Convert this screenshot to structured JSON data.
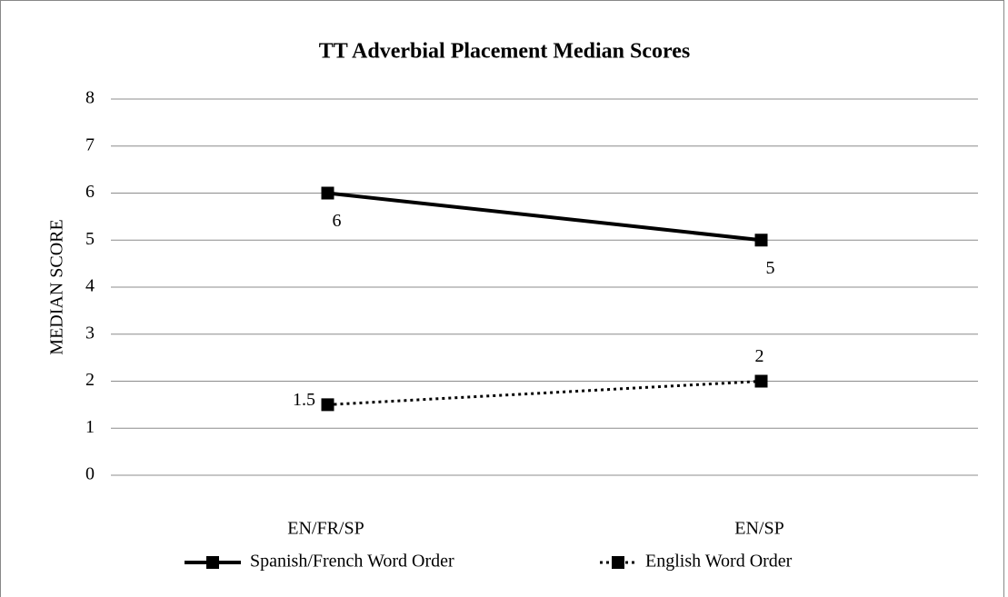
{
  "chart_data": {
    "type": "line",
    "title": "TT Adverbial Placement Median Scores",
    "y_label": "MEDIAN SCORE",
    "categories": [
      "EN/FR/SP",
      "EN/SP"
    ],
    "series": [
      {
        "name": "Spanish/French Word Order",
        "color": "#000000",
        "dash": "solid",
        "values": [
          6,
          5
        ]
      },
      {
        "name": "English Word Order",
        "color": "#000000",
        "dash": "dotted",
        "values": [
          1.5,
          2
        ]
      }
    ],
    "ylim": [
      0,
      8
    ],
    "yticks": [
      0,
      1,
      2,
      3,
      4,
      5,
      6,
      7,
      8
    ],
    "grid": true,
    "legend": "bottom"
  }
}
